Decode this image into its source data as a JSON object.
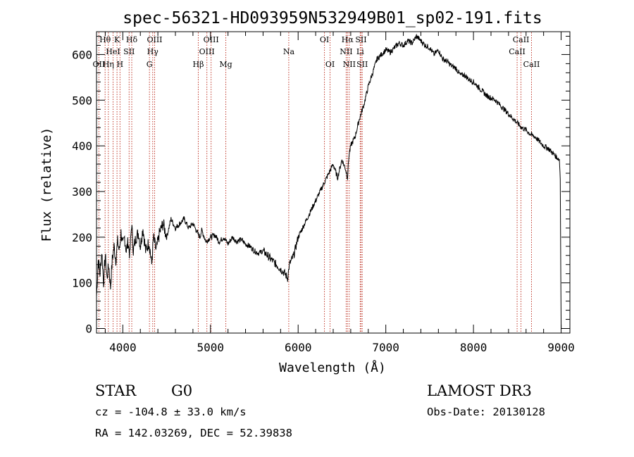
{
  "chart_data": {
    "type": "line",
    "title": "spec-56321-HD093959N532949B01_sp02-191.fits",
    "xlabel": "Wavelength (Å)",
    "ylabel": "Flux (relative)",
    "xlim": [
      3700,
      9100
    ],
    "ylim": [
      -10,
      650
    ],
    "xticks": [
      4000,
      5000,
      6000,
      7000,
      8000,
      9000
    ],
    "yticks": [
      0,
      100,
      200,
      300,
      400,
      500,
      600
    ],
    "series": [
      {
        "name": "spectrum",
        "x": [
          3700,
          3720,
          3740,
          3760,
          3780,
          3800,
          3820,
          3840,
          3860,
          3880,
          3900,
          3920,
          3940,
          3960,
          3980,
          4000,
          4020,
          4040,
          4060,
          4080,
          4100,
          4120,
          4150,
          4180,
          4200,
          4230,
          4260,
          4300,
          4330,
          4350,
          4380,
          4420,
          4460,
          4500,
          4550,
          4600,
          4650,
          4700,
          4750,
          4800,
          4850,
          4880,
          4900,
          4950,
          5000,
          5050,
          5100,
          5150,
          5200,
          5250,
          5300,
          5350,
          5400,
          5450,
          5500,
          5550,
          5600,
          5650,
          5700,
          5750,
          5800,
          5850,
          5880,
          5900,
          5950,
          6000,
          6050,
          6100,
          6150,
          6200,
          6250,
          6300,
          6350,
          6400,
          6450,
          6500,
          6540,
          6563,
          6580,
          6600,
          6650,
          6700,
          6750,
          6800,
          6850,
          6900,
          6950,
          7000,
          7050,
          7100,
          7150,
          7200,
          7250,
          7300,
          7350,
          7400,
          7450,
          7500,
          7550,
          7600,
          7650,
          7700,
          7750,
          7800,
          7850,
          7900,
          7950,
          8000,
          8050,
          8100,
          8150,
          8200,
          8250,
          8300,
          8350,
          8400,
          8450,
          8500,
          8550,
          8600,
          8650,
          8700,
          8750,
          8800,
          8850,
          8900,
          8950,
          8980,
          8990,
          9000
        ],
        "values": [
          70,
          150,
          120,
          170,
          100,
          160,
          110,
          140,
          90,
          150,
          180,
          150,
          190,
          170,
          210,
          180,
          200,
          170,
          190,
          160,
          230,
          170,
          200,
          210,
          180,
          220,
          170,
          190,
          140,
          200,
          170,
          210,
          230,
          200,
          240,
          220,
          230,
          240,
          220,
          230,
          210,
          200,
          215,
          190,
          200,
          205,
          190,
          200,
          185,
          200,
          190,
          195,
          185,
          180,
          170,
          165,
          170,
          160,
          150,
          140,
          130,
          120,
          110,
          140,
          160,
          200,
          220,
          240,
          260,
          280,
          300,
          320,
          340,
          360,
          330,
          370,
          350,
          330,
          380,
          400,
          420,
          460,
          490,
          530,
          560,
          590,
          600,
          610,
          605,
          615,
          625,
          620,
          630,
          625,
          640,
          630,
          620,
          615,
          600,
          610,
          590,
          585,
          575,
          570,
          555,
          555,
          545,
          540,
          530,
          520,
          510,
          505,
          500,
          490,
          480,
          470,
          460,
          450,
          440,
          435,
          425,
          420,
          410,
          400,
          395,
          385,
          375,
          370,
          330,
          0
        ]
      }
    ],
    "lines": [
      {
        "name": "Hθ",
        "wavelength": 3798,
        "row": 1
      },
      {
        "name": "K",
        "wavelength": 3934,
        "row": 1
      },
      {
        "name": "Hδ",
        "wavelength": 4102,
        "row": 1
      },
      {
        "name": "OIII",
        "wavelength": 4363,
        "row": 1
      },
      {
        "name": "OIII",
        "wavelength": 5007,
        "row": 1
      },
      {
        "name": "OI",
        "wavelength": 6300,
        "row": 1
      },
      {
        "name": "Hα",
        "wavelength": 6563,
        "row": 1
      },
      {
        "name": "SII",
        "wavelength": 6717,
        "row": 1
      },
      {
        "name": "CaII",
        "wavelength": 8542,
        "row": 1
      },
      {
        "name": "HeI",
        "wavelength": 3889,
        "row": 2
      },
      {
        "name": "SII",
        "wavelength": 4072,
        "row": 2
      },
      {
        "name": "Hγ",
        "wavelength": 4341,
        "row": 2
      },
      {
        "name": "OIII",
        "wavelength": 4959,
        "row": 2
      },
      {
        "name": "Na",
        "wavelength": 5893,
        "row": 2
      },
      {
        "name": "NII",
        "wavelength": 6548,
        "row": 2
      },
      {
        "name": "Li",
        "wavelength": 6708,
        "row": 2
      },
      {
        "name": "CaII",
        "wavelength": 8498,
        "row": 2
      },
      {
        "name": "OII",
        "wavelength": 3727,
        "row": 3
      },
      {
        "name": "Hη",
        "wavelength": 3835,
        "row": 3
      },
      {
        "name": "H",
        "wavelength": 3968,
        "row": 3
      },
      {
        "name": "G",
        "wavelength": 4304,
        "row": 3
      },
      {
        "name": "Hβ",
        "wavelength": 4861,
        "row": 3
      },
      {
        "name": "Mg",
        "wavelength": 5175,
        "row": 3
      },
      {
        "name": "OI",
        "wavelength": 6364,
        "row": 3
      },
      {
        "name": "NII",
        "wavelength": 6583,
        "row": 3
      },
      {
        "name": "SII",
        "wavelength": 6731,
        "row": 3
      },
      {
        "name": "CaII",
        "wavelength": 8662,
        "row": 3
      }
    ],
    "line_color": "#c0392b"
  },
  "info": {
    "class": "STAR",
    "subclass": "G0",
    "survey": "LAMOST DR3",
    "redshift_text": "cz = -104.8 ± 33.0 km/s",
    "obs_date": "Obs-Date: 20130128",
    "coords": "RA = 142.03269, DEC =  52.39838"
  }
}
